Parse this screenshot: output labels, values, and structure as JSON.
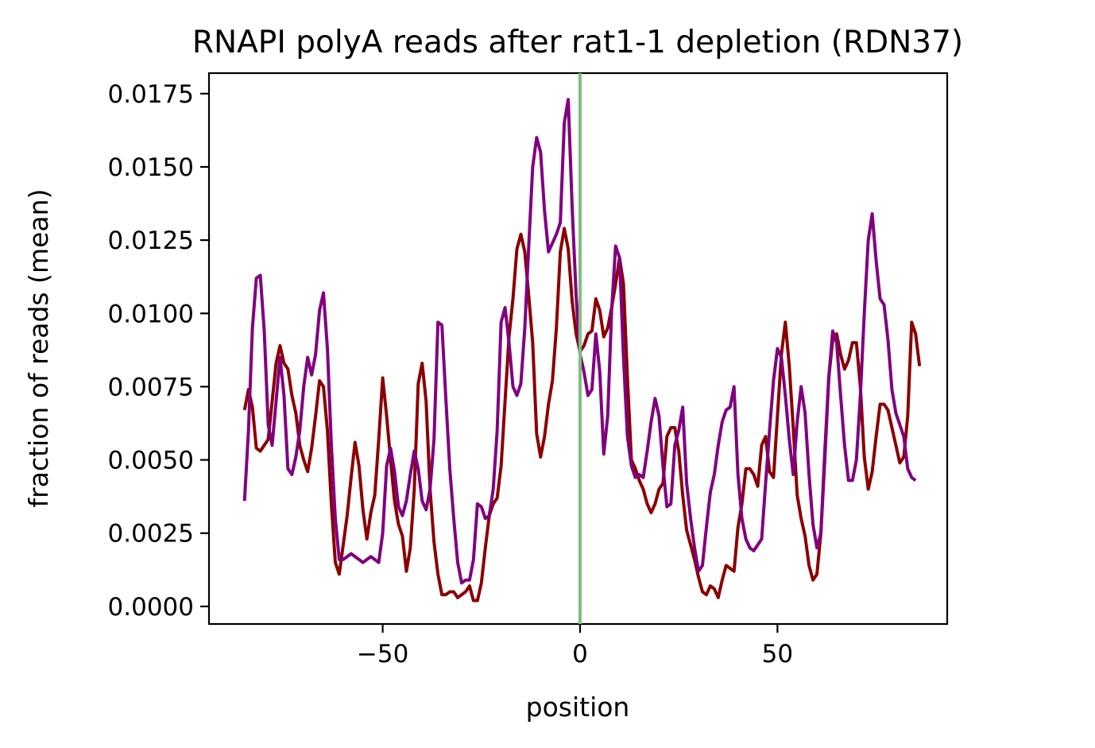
{
  "chart_data": {
    "type": "line",
    "title": "RNAPI polyA reads after rat1-1 depletion (RDN37)",
    "xlabel": "position",
    "ylabel": "fraction of reads (mean)",
    "xlim": [
      -94,
      93
    ],
    "ylim": [
      -0.0006,
      0.0182
    ],
    "xticks": [
      -50,
      0,
      50
    ],
    "xtick_labels": [
      "−50",
      "0",
      "50"
    ],
    "yticks": [
      0,
      0.0025,
      0.005,
      0.0075,
      0.01,
      0.0125,
      0.015,
      0.0175
    ],
    "ytick_labels": [
      "0.0000",
      "0.0025",
      "0.0050",
      "0.0075",
      "0.0100",
      "0.0125",
      "0.0150",
      "0.0175"
    ],
    "grid": false,
    "vline": {
      "x": 0,
      "color": "#7fbf7f"
    },
    "x_start": -85,
    "x_step": 1,
    "series": [
      {
        "color": "#8b0000",
        "values": [
          0.0067,
          0.0074,
          0.0068,
          0.0054,
          0.0053,
          0.0055,
          0.0057,
          0.007,
          0.0083,
          0.0089,
          0.0083,
          0.0081,
          0.0072,
          0.0066,
          0.0055,
          0.005,
          0.0046,
          0.0054,
          0.0065,
          0.0077,
          0.0075,
          0.006,
          0.0035,
          0.0015,
          0.0011,
          0.0021,
          0.0031,
          0.0044,
          0.0056,
          0.0048,
          0.0033,
          0.0023,
          0.0032,
          0.0038,
          0.0057,
          0.0078,
          0.0065,
          0.005,
          0.0036,
          0.0028,
          0.0024,
          0.0012,
          0.002,
          0.004,
          0.0076,
          0.0083,
          0.007,
          0.004,
          0.0022,
          0.0011,
          0.0004,
          0.0004,
          0.0005,
          0.0005,
          0.0003,
          0.0004,
          0.0005,
          0.0007,
          0.0002,
          0.0002,
          0.0008,
          0.002,
          0.0031,
          0.0035,
          0.0037,
          0.0048,
          0.007,
          0.0092,
          0.0105,
          0.0122,
          0.0127,
          0.0121,
          0.0106,
          0.009,
          0.0059,
          0.0051,
          0.0058,
          0.0069,
          0.0077,
          0.0095,
          0.0121,
          0.0129,
          0.0122,
          0.0104,
          0.0093,
          0.0087,
          0.0089,
          0.0093,
          0.0094,
          0.0105,
          0.0101,
          0.0092,
          0.0095,
          0.0102,
          0.011,
          0.0119,
          0.011,
          0.0078,
          0.005,
          0.0047,
          0.0043,
          0.004,
          0.0035,
          0.0032,
          0.0035,
          0.004,
          0.0042,
          0.0058,
          0.0061,
          0.0061,
          0.0053,
          0.0038,
          0.0026,
          0.0021,
          0.0016,
          0.001,
          0.0005,
          0.0004,
          0.0007,
          0.0006,
          0.0003,
          0.0009,
          0.0014,
          0.0013,
          0.0012,
          0.0027,
          0.0035,
          0.0047,
          0.0047,
          0.0045,
          0.0041,
          0.0055,
          0.0058,
          0.0046,
          0.0044,
          0.0065,
          0.0086,
          0.0097,
          0.0082,
          0.0061,
          0.0038,
          0.003,
          0.0024,
          0.0014,
          0.0009,
          0.0011,
          0.0025,
          0.0053,
          0.0078,
          0.0091,
          0.0093,
          0.0086,
          0.0081,
          0.0084,
          0.009,
          0.009,
          0.0075,
          0.0051,
          0.004,
          0.0046,
          0.0058,
          0.0069,
          0.0069,
          0.0067,
          0.0061,
          0.0055,
          0.0049,
          0.0051,
          0.0065,
          0.0097,
          0.0093,
          0.0082
        ]
      },
      {
        "color": "#800080",
        "values": [
          0.0036,
          0.006,
          0.0095,
          0.0112,
          0.0113,
          0.0094,
          0.0062,
          0.0055,
          0.007,
          0.0085,
          0.0072,
          0.0047,
          0.0045,
          0.0051,
          0.006,
          0.0075,
          0.0085,
          0.0079,
          0.0086,
          0.0101,
          0.0107,
          0.0088,
          0.0055,
          0.003,
          0.0016,
          0.0016,
          0.0017,
          0.0018,
          0.0017,
          0.0016,
          0.0015,
          0.0016,
          0.0017,
          0.0016,
          0.0015,
          0.0025,
          0.0048,
          0.0054,
          0.0046,
          0.0034,
          0.0031,
          0.0036,
          0.0045,
          0.0053,
          0.0047,
          0.0036,
          0.0033,
          0.004,
          0.0057,
          0.0097,
          0.0096,
          0.0071,
          0.0047,
          0.003,
          0.0015,
          0.0008,
          0.0009,
          0.0009,
          0.0016,
          0.0035,
          0.0034,
          0.003,
          0.0031,
          0.004,
          0.006,
          0.0097,
          0.0102,
          0.009,
          0.0075,
          0.0072,
          0.0076,
          0.0095,
          0.0123,
          0.015,
          0.016,
          0.0155,
          0.0135,
          0.0121,
          0.0124,
          0.0127,
          0.0131,
          0.0165,
          0.0173,
          0.0136,
          0.0106,
          0.0086,
          0.008,
          0.0072,
          0.0074,
          0.0093,
          0.008,
          0.0052,
          0.0065,
          0.0101,
          0.0123,
          0.0119,
          0.0085,
          0.0058,
          0.0048,
          0.0044,
          0.0045,
          0.0044,
          0.0053,
          0.0063,
          0.0071,
          0.0065,
          0.0048,
          0.0034,
          0.0035,
          0.0055,
          0.006,
          0.0068,
          0.0042,
          0.003,
          0.002,
          0.0012,
          0.0014,
          0.0027,
          0.0039,
          0.0045,
          0.0055,
          0.0063,
          0.0067,
          0.0068,
          0.0075,
          0.0045,
          0.003,
          0.0023,
          0.002,
          0.0019,
          0.0021,
          0.0023,
          0.0042,
          0.006,
          0.0077,
          0.0088,
          0.0085,
          0.0072,
          0.0057,
          0.0045,
          0.0063,
          0.0075,
          0.0066,
          0.0045,
          0.0028,
          0.002,
          0.0025,
          0.005,
          0.0078,
          0.0094,
          0.009,
          0.0072,
          0.0055,
          0.0043,
          0.0043,
          0.005,
          0.0072,
          0.01,
          0.0125,
          0.0134,
          0.0118,
          0.0105,
          0.0103,
          0.0091,
          0.0074,
          0.0066,
          0.0062,
          0.0058,
          0.0047,
          0.0044,
          0.0043
        ]
      }
    ]
  }
}
